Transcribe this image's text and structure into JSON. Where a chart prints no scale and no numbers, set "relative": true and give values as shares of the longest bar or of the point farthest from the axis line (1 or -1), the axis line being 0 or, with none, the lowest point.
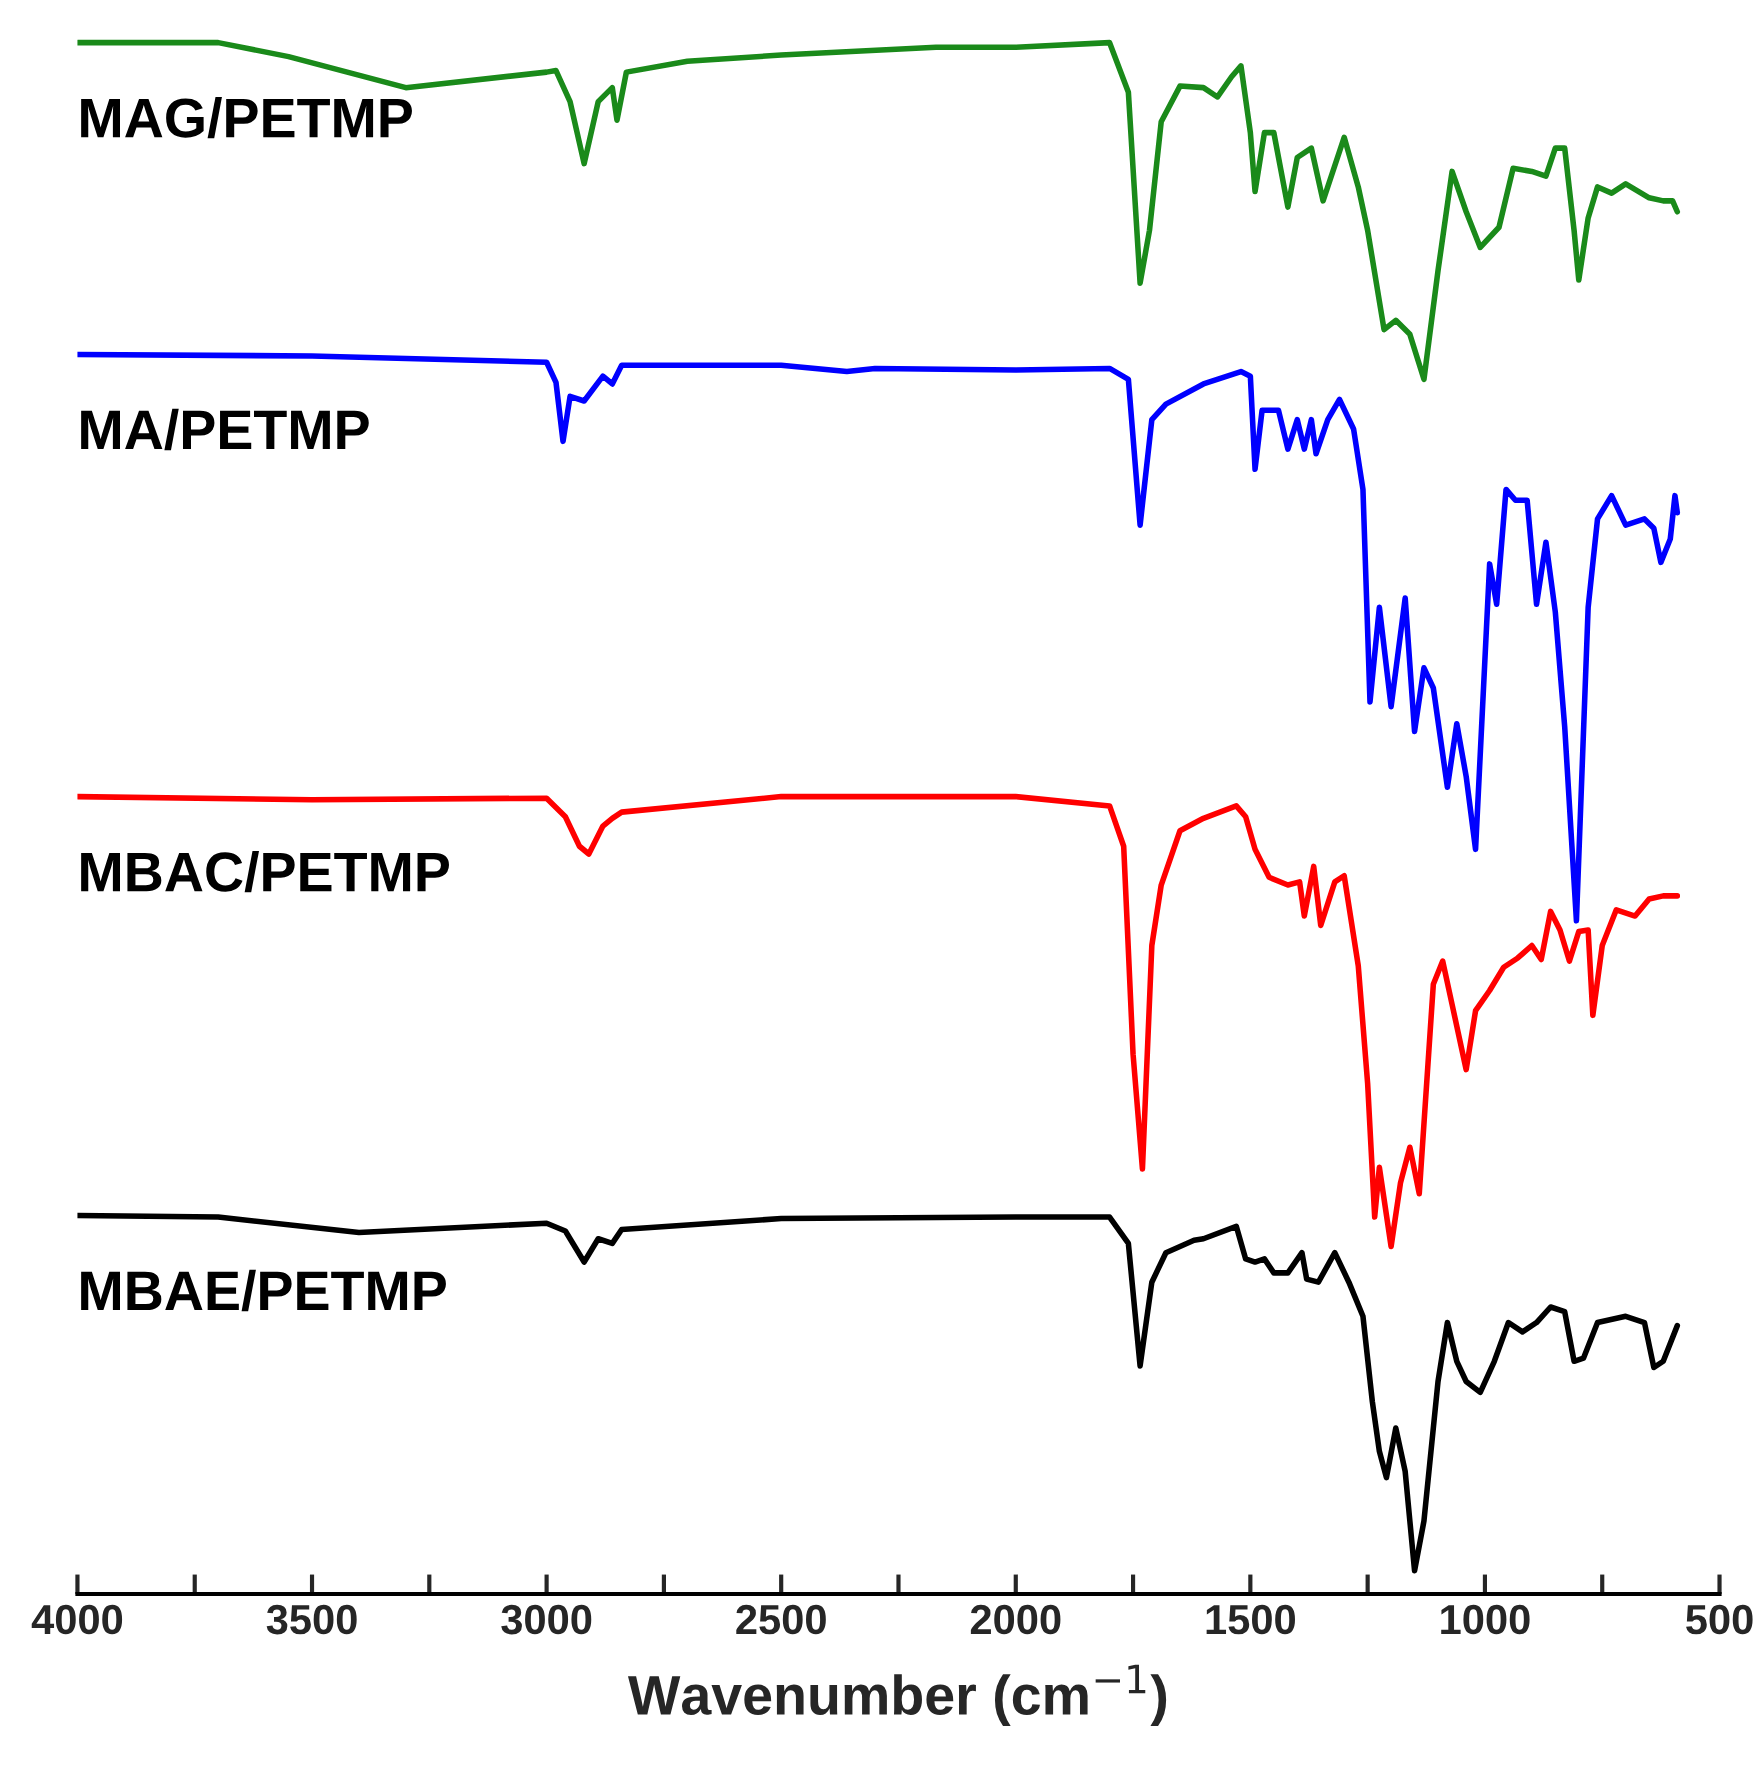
{
  "chart_data": {
    "type": "line",
    "relative": true,
    "xlabel": "Wavenumber (cm$^{−1}$)",
    "xlim": [
      4000,
      500
    ],
    "xticks": [
      4000,
      {
        "value": 3750,
        "label": null
      },
      3500,
      {
        "value": 3250,
        "label": null
      },
      3000,
      {
        "value": 2750,
        "label": null
      },
      2500,
      {
        "value": 2250,
        "label": null
      },
      2000,
      {
        "value": 1750,
        "label": null
      },
      1500,
      {
        "value": 1250,
        "label": null
      },
      1000,
      {
        "value": 750,
        "label": null
      },
      500
    ],
    "tick_labels": "x",
    "grid": false,
    "legend": false,
    "marker": "none",
    "line_style": "solid",
    "series": [
      {
        "name": "MAG/PETMP",
        "color": "#1a8a1a",
        "x": [
          4000,
          3700,
          3550,
          3300,
          3000,
          2980,
          2950,
          2920,
          2890,
          2860,
          2850,
          2830,
          2700,
          2500,
          2170,
          2000,
          1800,
          1760,
          1735,
          1715,
          1690,
          1650,
          1600,
          1570,
          1540,
          1520,
          1500,
          1490,
          1470,
          1450,
          1420,
          1400,
          1370,
          1345,
          1300,
          1270,
          1250,
          1215,
          1190,
          1160,
          1130,
          1100,
          1070,
          1040,
          1010,
          970,
          940,
          900,
          870,
          850,
          830,
          810,
          800,
          780,
          760,
          730,
          700,
          650,
          620,
          600,
          590
        ],
        "values": [
          1.0,
          1.0,
          0.991,
          0.971,
          0.981,
          0.982,
          0.962,
          0.922,
          0.962,
          0.971,
          0.95,
          0.981,
          0.988,
          0.992,
          0.997,
          0.997,
          1.0,
          0.968,
          0.845,
          0.879,
          0.949,
          0.972,
          0.971,
          0.965,
          0.978,
          0.985,
          0.942,
          0.904,
          0.942,
          0.942,
          0.894,
          0.926,
          0.932,
          0.898,
          0.939,
          0.907,
          0.879,
          0.815,
          0.821,
          0.812,
          0.783,
          0.853,
          0.917,
          0.891,
          0.868,
          0.881,
          0.919,
          0.917,
          0.914,
          0.932,
          0.932,
          0.879,
          0.847,
          0.887,
          0.907,
          0.903,
          0.909,
          0.9,
          0.898,
          0.898,
          0.891
        ]
      },
      {
        "name": "MA/PETMP",
        "color": "#0000ff",
        "x": [
          4000,
          3500,
          3000,
          2980,
          2965,
          2950,
          2920,
          2880,
          2860,
          2840,
          2500,
          2360,
          2300,
          2000,
          1800,
          1760,
          1735,
          1710,
          1680,
          1600,
          1520,
          1500,
          1490,
          1475,
          1440,
          1420,
          1400,
          1385,
          1370,
          1360,
          1335,
          1310,
          1280,
          1260,
          1245,
          1225,
          1200,
          1170,
          1150,
          1130,
          1110,
          1080,
          1060,
          1040,
          1020,
          990,
          975,
          955,
          935,
          910,
          890,
          870,
          850,
          830,
          805,
          780,
          760,
          730,
          700,
          660,
          640,
          625,
          605,
          595,
          590
        ],
        "values": [
          0.799,
          0.798,
          0.794,
          0.781,
          0.743,
          0.772,
          0.769,
          0.785,
          0.78,
          0.792,
          0.792,
          0.788,
          0.79,
          0.789,
          0.79,
          0.783,
          0.689,
          0.757,
          0.767,
          0.78,
          0.788,
          0.785,
          0.725,
          0.763,
          0.763,
          0.738,
          0.757,
          0.738,
          0.757,
          0.735,
          0.757,
          0.77,
          0.751,
          0.712,
          0.575,
          0.636,
          0.572,
          0.642,
          0.556,
          0.597,
          0.584,
          0.52,
          0.561,
          0.527,
          0.48,
          0.664,
          0.638,
          0.712,
          0.705,
          0.705,
          0.638,
          0.678,
          0.633,
          0.559,
          0.434,
          0.636,
          0.693,
          0.708,
          0.689,
          0.693,
          0.687,
          0.665,
          0.68,
          0.708,
          0.697
        ]
      },
      {
        "name": "MBAC/PETMP",
        "color": "#ff0000",
        "x": [
          4000,
          3500,
          3000,
          2960,
          2930,
          2910,
          2880,
          2860,
          2840,
          2500,
          2000,
          1800,
          1770,
          1750,
          1730,
          1710,
          1690,
          1650,
          1600,
          1530,
          1510,
          1490,
          1460,
          1420,
          1395,
          1385,
          1365,
          1350,
          1320,
          1300,
          1270,
          1250,
          1235,
          1225,
          1200,
          1180,
          1160,
          1140,
          1110,
          1090,
          1070,
          1040,
          1020,
          990,
          960,
          930,
          900,
          880,
          860,
          840,
          820,
          800,
          780,
          770,
          750,
          720,
          680,
          650,
          620,
          590
        ],
        "values": [
          0.514,
          0.512,
          0.513,
          0.501,
          0.482,
          0.477,
          0.495,
          0.5,
          0.504,
          0.514,
          0.514,
          0.508,
          0.482,
          0.348,
          0.274,
          0.418,
          0.457,
          0.492,
          0.5,
          0.508,
          0.501,
          0.48,
          0.462,
          0.457,
          0.459,
          0.437,
          0.469,
          0.431,
          0.459,
          0.463,
          0.405,
          0.329,
          0.243,
          0.275,
          0.224,
          0.265,
          0.288,
          0.258,
          0.393,
          0.408,
          0.38,
          0.338,
          0.376,
          0.389,
          0.404,
          0.41,
          0.418,
          0.409,
          0.44,
          0.428,
          0.408,
          0.427,
          0.428,
          0.373,
          0.418,
          0.441,
          0.437,
          0.448,
          0.45,
          0.45
        ]
      },
      {
        "name": "MBAE/PETMP",
        "color": "#000000",
        "x": [
          4000,
          3700,
          3400,
          3000,
          2960,
          2920,
          2890,
          2860,
          2840,
          2500,
          2000,
          1800,
          1760,
          1735,
          1710,
          1680,
          1620,
          1600,
          1530,
          1510,
          1490,
          1470,
          1450,
          1420,
          1390,
          1380,
          1355,
          1320,
          1290,
          1260,
          1240,
          1225,
          1210,
          1190,
          1170,
          1150,
          1130,
          1100,
          1080,
          1060,
          1040,
          1010,
          980,
          950,
          920,
          890,
          860,
          830,
          810,
          790,
          760,
          700,
          660,
          640,
          620,
          590
        ],
        "values": [
          0.244,
          0.243,
          0.233,
          0.239,
          0.234,
          0.214,
          0.229,
          0.226,
          0.235,
          0.242,
          0.243,
          0.243,
          0.226,
          0.147,
          0.201,
          0.22,
          0.228,
          0.229,
          0.237,
          0.216,
          0.214,
          0.216,
          0.207,
          0.207,
          0.22,
          0.203,
          0.201,
          0.22,
          0.201,
          0.179,
          0.124,
          0.092,
          0.075,
          0.107,
          0.079,
          0.015,
          0.047,
          0.137,
          0.175,
          0.15,
          0.137,
          0.13,
          0.15,
          0.175,
          0.169,
          0.175,
          0.185,
          0.182,
          0.15,
          0.152,
          0.175,
          0.179,
          0.175,
          0.146,
          0.15,
          0.173
        ]
      }
    ]
  }
}
